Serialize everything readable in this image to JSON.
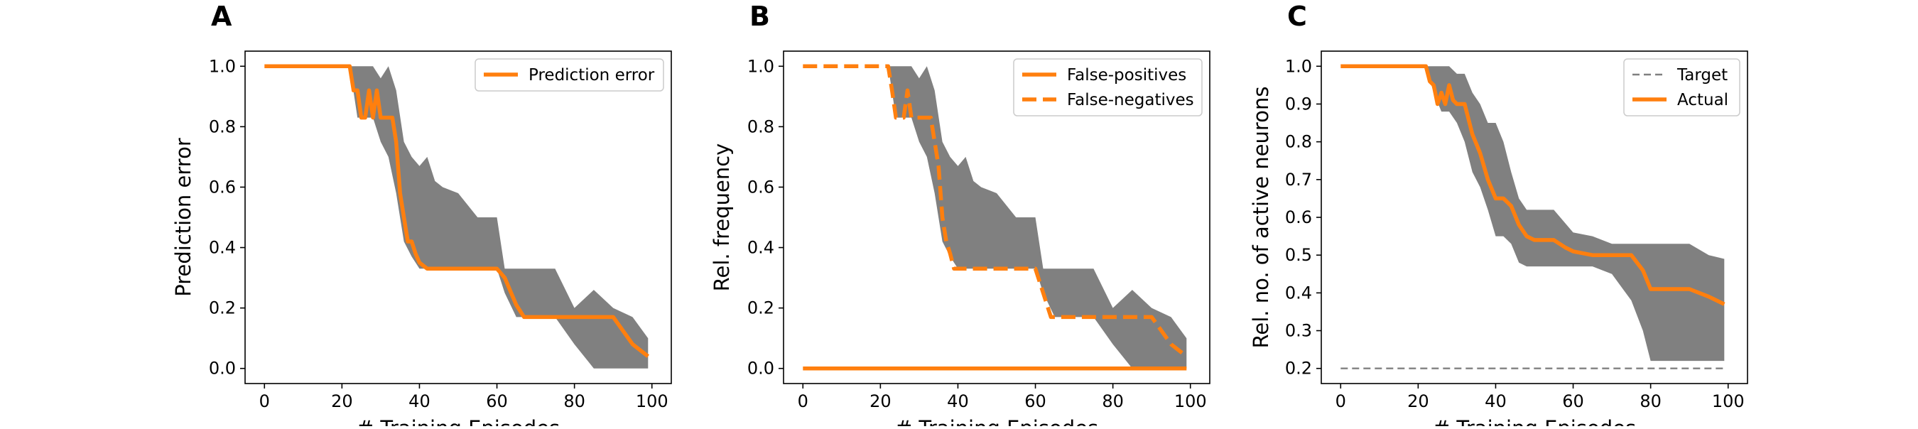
{
  "colors": {
    "accent": "#ff7f0e",
    "band": "#808080",
    "target": "#808080"
  },
  "chart_data": [
    {
      "type": "line",
      "panel_label": "A",
      "xlabel": "# Training Episodes",
      "ylabel": "Prediction error",
      "xlim": [
        -5,
        105
      ],
      "ylim": [
        -0.05,
        1.05
      ],
      "xticks": [
        0,
        20,
        40,
        60,
        80,
        100
      ],
      "yticks": [
        0.0,
        0.2,
        0.4,
        0.6,
        0.8,
        1.0
      ],
      "ytick_labels": [
        "0.0",
        "0.2",
        "0.4",
        "0.6",
        "0.8",
        "1.0"
      ],
      "legend_position": "upper right",
      "series": [
        {
          "name": "Prediction error",
          "style": "solid",
          "x": [
            0,
            22,
            23,
            24,
            25,
            26,
            27,
            28,
            29,
            30,
            31,
            32,
            33,
            34,
            35,
            36,
            37,
            38,
            39,
            40,
            42,
            45,
            50,
            55,
            60,
            62,
            65,
            67,
            70,
            75,
            80,
            85,
            90,
            95,
            99
          ],
          "y": [
            1.0,
            1.0,
            0.92,
            0.92,
            0.83,
            0.83,
            0.92,
            0.83,
            0.92,
            0.83,
            0.83,
            0.83,
            0.83,
            0.75,
            0.58,
            0.5,
            0.42,
            0.42,
            0.38,
            0.35,
            0.33,
            0.33,
            0.33,
            0.33,
            0.33,
            0.3,
            0.21,
            0.17,
            0.17,
            0.17,
            0.17,
            0.17,
            0.17,
            0.08,
            0.04
          ]
        }
      ],
      "bands": [
        {
          "x": [
            0,
            22,
            24,
            26,
            28,
            30,
            32,
            34,
            36,
            38,
            40,
            42,
            44,
            46,
            50,
            55,
            60,
            62,
            65,
            70,
            75,
            80,
            85,
            90,
            95,
            99
          ],
          "lower": [
            1.0,
            1.0,
            0.83,
            0.83,
            0.83,
            0.75,
            0.7,
            0.58,
            0.42,
            0.37,
            0.33,
            0.33,
            0.33,
            0.33,
            0.33,
            0.33,
            0.33,
            0.25,
            0.17,
            0.17,
            0.17,
            0.08,
            0.0,
            0.0,
            0.0,
            0.0
          ],
          "upper": [
            1.0,
            1.0,
            1.0,
            1.0,
            1.0,
            0.96,
            1.0,
            0.92,
            0.75,
            0.7,
            0.67,
            0.7,
            0.62,
            0.6,
            0.58,
            0.5,
            0.5,
            0.33,
            0.33,
            0.33,
            0.33,
            0.2,
            0.26,
            0.2,
            0.17,
            0.1
          ]
        }
      ]
    },
    {
      "type": "line",
      "panel_label": "B",
      "xlabel": "# Training Episodes",
      "ylabel": "Rel. frequency",
      "xlim": [
        -5,
        105
      ],
      "ylim": [
        -0.05,
        1.05
      ],
      "xticks": [
        0,
        20,
        40,
        60,
        80,
        100
      ],
      "yticks": [
        0.0,
        0.2,
        0.4,
        0.6,
        0.8,
        1.0
      ],
      "ytick_labels": [
        "0.0",
        "0.2",
        "0.4",
        "0.6",
        "0.8",
        "1.0"
      ],
      "legend_position": "upper right",
      "series": [
        {
          "name": "False-positives",
          "style": "solid",
          "x": [
            0,
            99
          ],
          "y": [
            0.0,
            0.0
          ]
        },
        {
          "name": "False-negatives",
          "style": "dashed",
          "x": [
            0,
            22,
            23,
            24,
            25,
            26,
            27,
            28,
            29,
            30,
            31,
            32,
            33,
            34,
            35,
            36,
            37,
            38,
            39,
            40,
            42,
            45,
            50,
            55,
            60,
            62,
            64,
            66,
            70,
            75,
            80,
            85,
            90,
            95,
            99
          ],
          "y": [
            1.0,
            1.0,
            0.92,
            0.83,
            0.83,
            0.83,
            0.92,
            0.83,
            0.83,
            0.83,
            0.83,
            0.83,
            0.83,
            0.75,
            0.67,
            0.5,
            0.42,
            0.38,
            0.33,
            0.33,
            0.33,
            0.33,
            0.33,
            0.33,
            0.33,
            0.25,
            0.17,
            0.17,
            0.17,
            0.17,
            0.17,
            0.17,
            0.17,
            0.08,
            0.04
          ]
        }
      ],
      "bands": [
        {
          "x": [
            0,
            22,
            24,
            26,
            28,
            30,
            32,
            34,
            36,
            38,
            40,
            42,
            44,
            46,
            50,
            55,
            60,
            62,
            65,
            70,
            75,
            80,
            85,
            90,
            95,
            99
          ],
          "lower": [
            1.0,
            1.0,
            0.83,
            0.83,
            0.83,
            0.75,
            0.7,
            0.58,
            0.42,
            0.37,
            0.33,
            0.33,
            0.33,
            0.33,
            0.33,
            0.33,
            0.33,
            0.25,
            0.17,
            0.17,
            0.17,
            0.08,
            0.0,
            0.0,
            0.0,
            0.0
          ],
          "upper": [
            1.0,
            1.0,
            1.0,
            1.0,
            1.0,
            0.96,
            1.0,
            0.92,
            0.75,
            0.7,
            0.67,
            0.7,
            0.62,
            0.6,
            0.58,
            0.5,
            0.5,
            0.33,
            0.33,
            0.33,
            0.33,
            0.2,
            0.26,
            0.2,
            0.17,
            0.1
          ]
        }
      ]
    },
    {
      "type": "line",
      "panel_label": "C",
      "xlabel": "# Training Episodes",
      "ylabel": "Rel. no. of active neurons",
      "xlim": [
        -5,
        105
      ],
      "ylim": [
        0.16,
        1.04
      ],
      "xticks": [
        0,
        20,
        40,
        60,
        80,
        100
      ],
      "yticks": [
        0.2,
        0.3,
        0.4,
        0.5,
        0.6,
        0.7,
        0.8,
        0.9,
        1.0
      ],
      "ytick_labels": [
        "0.2",
        "0.3",
        "0.4",
        "0.5",
        "0.6",
        "0.7",
        "0.8",
        "0.9",
        "1.0"
      ],
      "legend_position": "upper right",
      "series": [
        {
          "name": "Target",
          "style": "dashed-thin",
          "x": [
            0,
            99
          ],
          "y": [
            0.2,
            0.2
          ]
        },
        {
          "name": "Actual",
          "style": "solid",
          "x": [
            0,
            22,
            23,
            24,
            25,
            26,
            27,
            28,
            29,
            30,
            32,
            34,
            36,
            38,
            40,
            42,
            44,
            46,
            48,
            50,
            55,
            58,
            60,
            65,
            70,
            75,
            78,
            80,
            85,
            90,
            95,
            99
          ],
          "y": [
            1.0,
            1.0,
            0.96,
            0.95,
            0.9,
            0.93,
            0.9,
            0.95,
            0.91,
            0.9,
            0.9,
            0.82,
            0.77,
            0.7,
            0.65,
            0.65,
            0.63,
            0.58,
            0.55,
            0.54,
            0.54,
            0.52,
            0.51,
            0.5,
            0.5,
            0.5,
            0.46,
            0.41,
            0.41,
            0.41,
            0.39,
            0.37
          ]
        }
      ],
      "bands": [
        {
          "x": [
            0,
            22,
            24,
            26,
            28,
            30,
            32,
            34,
            36,
            38,
            40,
            42,
            44,
            46,
            48,
            50,
            55,
            60,
            65,
            70,
            75,
            78,
            80,
            85,
            90,
            95,
            99
          ],
          "lower": [
            1.0,
            1.0,
            0.93,
            0.88,
            0.88,
            0.85,
            0.8,
            0.72,
            0.68,
            0.62,
            0.55,
            0.55,
            0.53,
            0.48,
            0.47,
            0.47,
            0.47,
            0.47,
            0.47,
            0.45,
            0.38,
            0.3,
            0.22,
            0.22,
            0.22,
            0.22,
            0.22
          ],
          "upper": [
            1.0,
            1.0,
            1.0,
            1.0,
            1.0,
            0.98,
            0.98,
            0.93,
            0.9,
            0.85,
            0.85,
            0.8,
            0.72,
            0.65,
            0.62,
            0.62,
            0.62,
            0.56,
            0.55,
            0.53,
            0.53,
            0.53,
            0.53,
            0.53,
            0.53,
            0.5,
            0.49
          ]
        }
      ]
    }
  ]
}
